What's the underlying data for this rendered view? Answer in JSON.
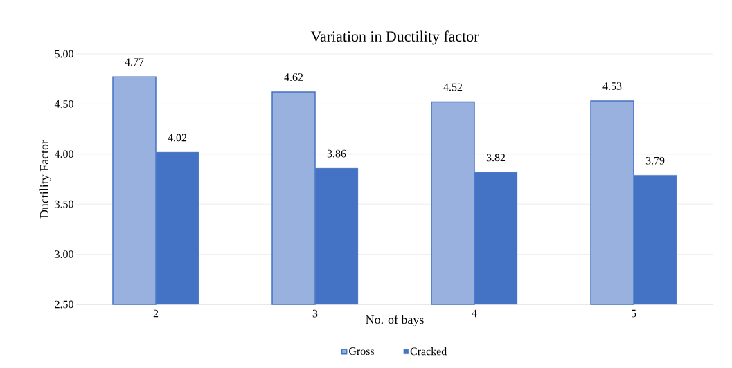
{
  "chart_data": {
    "type": "bar",
    "title": "Variation in Ductility factor",
    "xlabel": "No. of bays",
    "ylabel": "Ductility Factor",
    "categories": [
      "2",
      "3",
      "4",
      "5"
    ],
    "series": [
      {
        "name": "Gross",
        "color": "#4472c4",
        "values": [
          4.77,
          4.62,
          4.52,
          4.53
        ]
      },
      {
        "name": "Cracked",
        "color": "#4472c4",
        "values": [
          4.02,
          3.86,
          3.82,
          3.79
        ]
      }
    ],
    "ylim": [
      2.5,
      5
    ],
    "yticks": [
      {
        "value": 2.5,
        "label": "2.50"
      },
      {
        "value": 3,
        "label": "3.00"
      },
      {
        "value": 3.5,
        "label": "3.50"
      },
      {
        "value": 4,
        "label": "4.00"
      },
      {
        "value": 4.5,
        "label": "4.50"
      },
      {
        "value": 5,
        "label": "5.00"
      }
    ],
    "grid": "y",
    "legend": "bottom",
    "data_labels": true
  }
}
